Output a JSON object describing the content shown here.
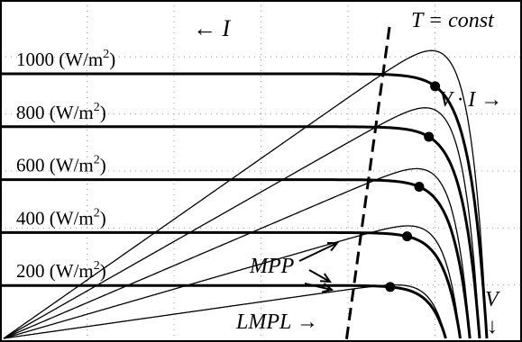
{
  "chart_data": {
    "type": "line",
    "title": "",
    "xlabel": "V",
    "ylabel": "",
    "x_axis_arrow": "↓",
    "grid": true,
    "irradiance_units": "(W/m",
    "irradiance_exponent": "2",
    "irradiance_suffix": ")",
    "series": [
      {
        "irradiance": "1000",
        "isc": 0.875,
        "voc": 1.0,
        "mpp": [
          0.893,
          0.78
        ]
      },
      {
        "irradiance": "800",
        "isc": 0.7,
        "voc": 0.985,
        "mpp": [
          0.88,
          0.625
        ]
      },
      {
        "irradiance": "600",
        "isc": 0.525,
        "voc": 0.965,
        "mpp": [
          0.86,
          0.46
        ]
      },
      {
        "irradiance": "400",
        "isc": 0.35,
        "voc": 0.945,
        "mpp": [
          0.835,
          0.305
        ]
      },
      {
        "irradiance": "200",
        "isc": 0.175,
        "voc": 0.915,
        "mpp": [
          0.8,
          0.145
        ]
      }
    ],
    "annotations": {
      "current": "← I",
      "constant_temp": "T = const",
      "power": "V · I →",
      "mpp": "MPP",
      "lmpl": "LMPL →"
    }
  }
}
